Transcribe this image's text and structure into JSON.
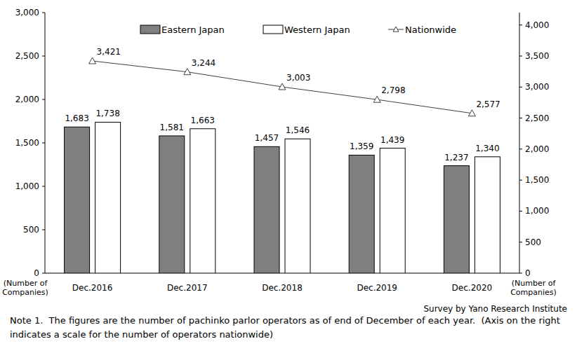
{
  "chart_data": {
    "type": "bar",
    "categories": [
      "Dec.2016",
      "Dec.2017",
      "Dec.2018",
      "Dec.2019",
      "Dec.2020"
    ],
    "series": [
      {
        "name": "Eastern Japan",
        "type": "bar",
        "color": "#808080",
        "values": [
          1683,
          1581,
          1457,
          1359,
          1237
        ],
        "value_labels": [
          "1,683",
          "1,581",
          "1,457",
          "1,359",
          "1,237"
        ]
      },
      {
        "name": "Western Japan",
        "type": "bar",
        "color": "#ffffff",
        "values": [
          1738,
          1663,
          1546,
          1439,
          1340
        ],
        "value_labels": [
          "1,738",
          "1,663",
          "1,546",
          "1,439",
          "1,340"
        ]
      },
      {
        "name": "Nationwide",
        "type": "line",
        "axis": "y2",
        "color": "#404040",
        "marker": "triangle",
        "values": [
          3421,
          3244,
          3003,
          2798,
          2577
        ],
        "value_labels": [
          "3,421",
          "3,244",
          "3,003",
          "2,798",
          "2,577"
        ]
      }
    ],
    "ylim": [
      0,
      3000
    ],
    "yticks": [
      0,
      500,
      {
        "value": 1000,
        "label": "1,000"
      },
      {
        "value": 1500,
        "label": "1,500"
      },
      {
        "value": 2000,
        "label": "2,000"
      },
      {
        "value": 2500,
        "label": "2,500"
      },
      {
        "value": 3000,
        "label": "3,000"
      }
    ],
    "y2lim": [
      0,
      4200
    ],
    "y2ticks": [
      0,
      500,
      {
        "value": 1000,
        "label": "1,000"
      },
      {
        "value": 1500,
        "label": "1,500"
      },
      {
        "value": 2000,
        "label": "2,000"
      },
      {
        "value": 2500,
        "label": "2,500"
      },
      {
        "value": 3000,
        "label": "3,000"
      },
      {
        "value": 3500,
        "label": "3,500"
      },
      {
        "value": 4000,
        "label": "4,000"
      }
    ],
    "y_label": "(Number of Companies)",
    "y2_label": "(Number of Companies)",
    "source": "Survey by Yano Research Institute",
    "note": "Note 1.  The figures are the number of pachinko parlor operators as of end of December of each year.  (Axis on the right indicates a scale for the number of operators nationwide)",
    "legend": "top",
    "data_labels": true,
    "grid": false
  }
}
